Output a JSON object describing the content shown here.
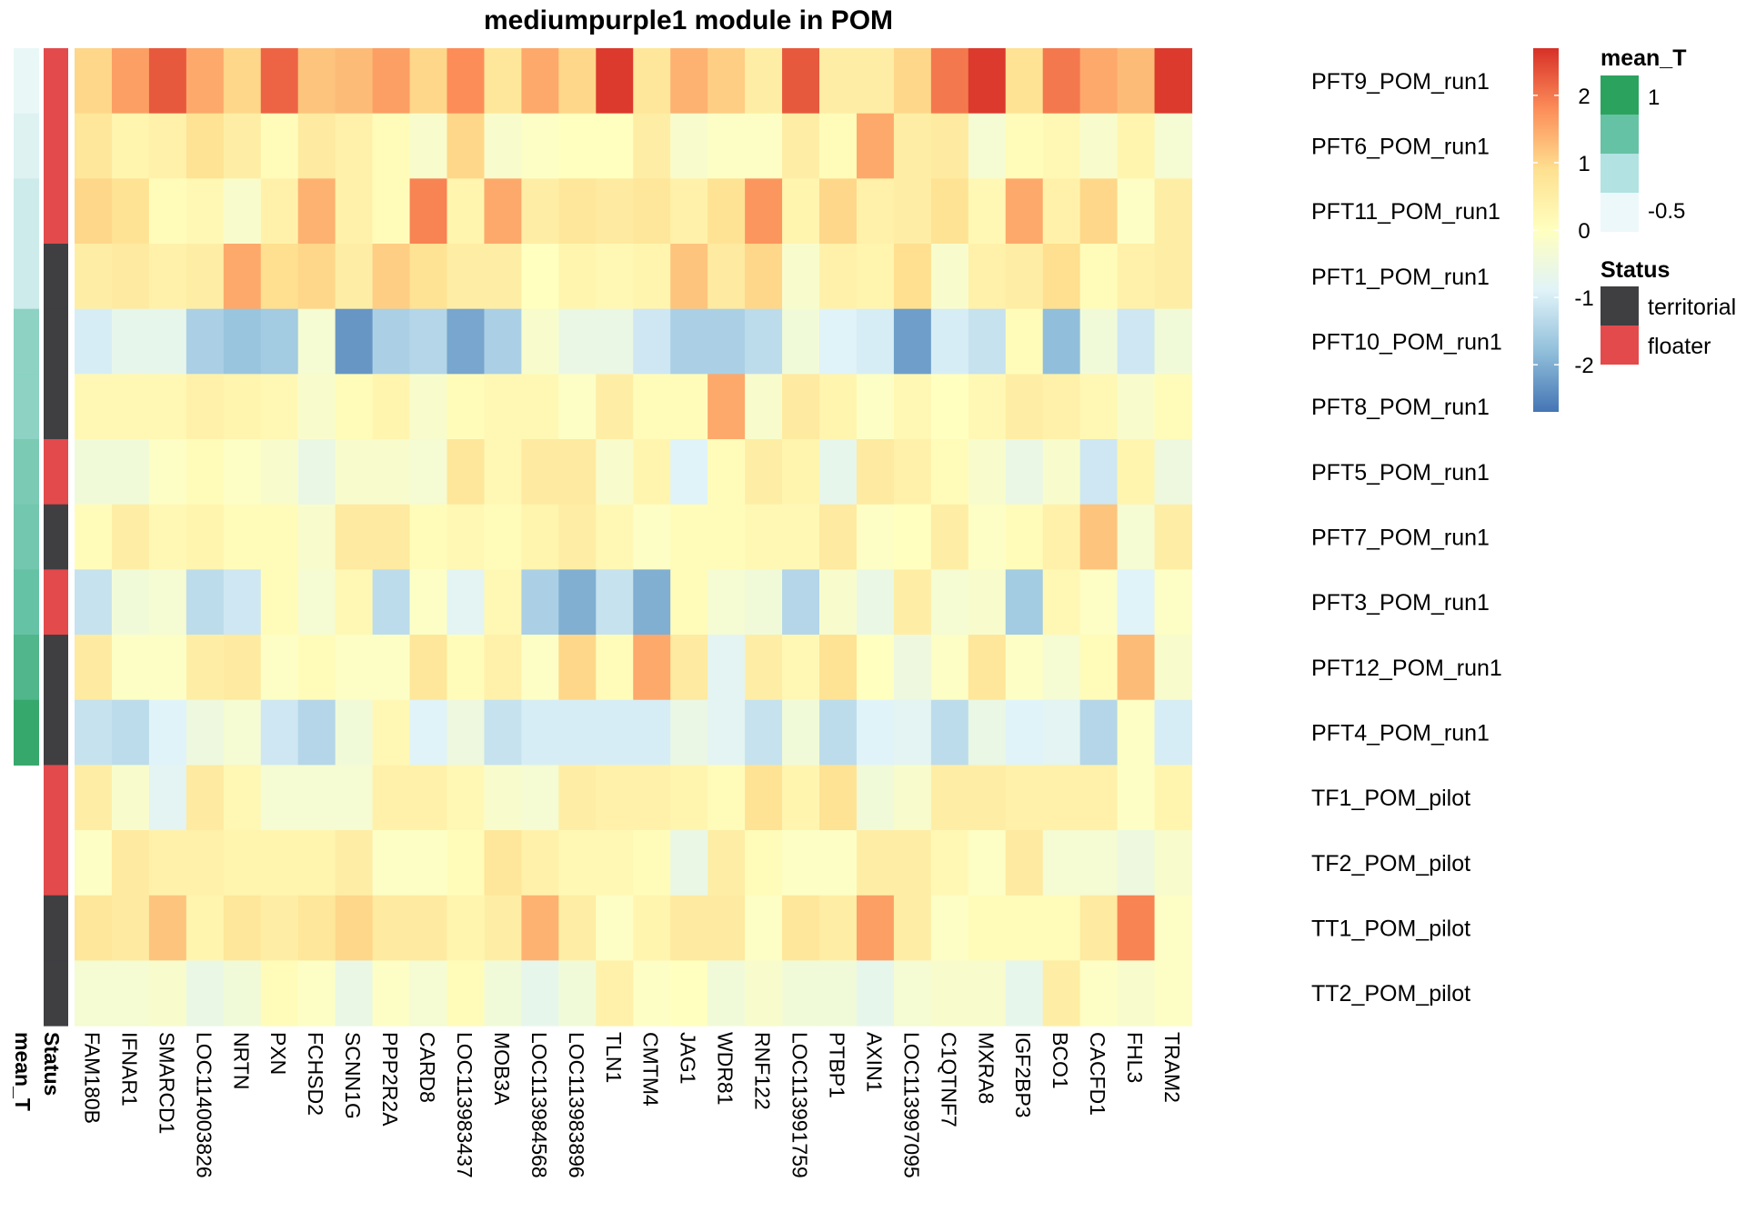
{
  "chart_data": {
    "type": "heatmap",
    "title": "mediumpurple1 module in POM",
    "rows": [
      "PFT9_POM_run1",
      "PFT6_POM_run1",
      "PFT11_POM_run1",
      "PFT1_POM_run1",
      "PFT10_POM_run1",
      "PFT8_POM_run1",
      "PFT5_POM_run1",
      "PFT7_POM_run1",
      "PFT3_POM_run1",
      "PFT12_POM_run1",
      "PFT4_POM_run1",
      "TF1_POM_pilot",
      "TF2_POM_pilot",
      "TT1_POM_pilot",
      "TT2_POM_pilot"
    ],
    "columns": [
      "FAM180B",
      "IFNAR1",
      "SMARCD1",
      "LOC114003826",
      "NRTN",
      "PXN",
      "FCHSD2",
      "SCNN1G",
      "PPP2R2A",
      "CARD8",
      "LOC113983437",
      "MOB3A",
      "LOC113984568",
      "LOC113983896",
      "TLN1",
      "CMTM4",
      "JAG1",
      "WDR81",
      "RNF122",
      "LOC113991759",
      "PTBP1",
      "AXIN1",
      "LOC113997095",
      "C1QTNF7",
      "MXRA8",
      "IGF2BP3",
      "BCO1",
      "CACFD1",
      "FHL3",
      "TRAM2"
    ],
    "values": [
      [
        1.0,
        1.6,
        2.3,
        1.5,
        1.0,
        2.2,
        1.2,
        1.3,
        1.6,
        1.0,
        1.8,
        0.7,
        1.5,
        1.0,
        2.6,
        0.7,
        1.4,
        1.1,
        0.5,
        2.3,
        0.5,
        0.5,
        1.0,
        2.0,
        2.6,
        0.8,
        2.0,
        1.5,
        1.3,
        2.6
      ],
      [
        0.7,
        0.3,
        0.4,
        0.8,
        0.5,
        0.1,
        0.6,
        0.4,
        0.1,
        -0.2,
        1.0,
        -0.2,
        -0.1,
        0.0,
        0.0,
        0.5,
        -0.2,
        -0.1,
        -0.1,
        0.5,
        0.1,
        1.5,
        0.5,
        0.6,
        -0.3,
        0.1,
        0.2,
        -0.2,
        0.3,
        -0.3
      ],
      [
        1.0,
        0.8,
        0.1,
        0.2,
        -0.2,
        0.4,
        1.4,
        0.4,
        0.1,
        1.9,
        0.3,
        1.5,
        0.5,
        0.7,
        0.6,
        0.7,
        0.4,
        0.8,
        1.7,
        0.3,
        1.0,
        0.4,
        0.5,
        0.8,
        0.2,
        1.5,
        0.4,
        1.0,
        -0.1,
        0.5
      ],
      [
        0.5,
        0.6,
        0.4,
        0.5,
        1.5,
        0.9,
        1.0,
        0.5,
        1.1,
        0.8,
        0.5,
        0.5,
        0.0,
        0.3,
        0.2,
        0.3,
        1.2,
        0.6,
        1.0,
        -0.2,
        0.4,
        0.3,
        0.9,
        -0.2,
        0.4,
        0.5,
        0.9,
        0.1,
        0.4,
        0.5
      ],
      [
        -1.0,
        -0.7,
        -0.7,
        -1.5,
        -1.7,
        -1.6,
        -0.3,
        -2.3,
        -1.5,
        -1.4,
        -2.1,
        -1.5,
        -0.2,
        -0.6,
        -0.6,
        -1.1,
        -1.5,
        -1.5,
        -1.3,
        -0.4,
        -0.9,
        -1.0,
        -2.2,
        -1.0,
        -1.2,
        0.1,
        -1.8,
        -0.4,
        -1.1,
        -0.4
      ],
      [
        0.2,
        0.2,
        0.2,
        0.4,
        0.3,
        0.2,
        -0.2,
        0.1,
        0.3,
        -0.2,
        0.1,
        0.2,
        0.2,
        -0.1,
        0.5,
        0.1,
        0.1,
        1.5,
        -0.2,
        0.6,
        0.3,
        -0.1,
        0.2,
        0.0,
        0.2,
        0.5,
        0.4,
        0.2,
        -0.2,
        0.1
      ],
      [
        -0.4,
        -0.4,
        -0.1,
        0.1,
        -0.1,
        -0.2,
        -0.6,
        -0.2,
        -0.2,
        -0.3,
        0.7,
        0.2,
        0.6,
        0.6,
        -0.2,
        0.3,
        -0.9,
        0.1,
        0.5,
        0.3,
        -0.7,
        0.6,
        0.4,
        0.1,
        -0.2,
        -0.6,
        -0.2,
        -1.1,
        0.3,
        -0.5
      ],
      [
        0.1,
        0.5,
        0.2,
        0.3,
        0.1,
        0.1,
        -0.2,
        0.6,
        0.6,
        0.1,
        0.2,
        0.1,
        0.3,
        0.5,
        0.2,
        -0.1,
        0.1,
        0.1,
        0.2,
        0.2,
        0.6,
        -0.1,
        0.0,
        0.5,
        -0.1,
        0.1,
        0.4,
        1.2,
        -0.3,
        0.5
      ],
      [
        -1.2,
        -0.4,
        -0.3,
        -1.3,
        -1.1,
        0.1,
        -0.3,
        0.2,
        -1.3,
        -0.1,
        -0.8,
        0.2,
        -1.5,
        -2.0,
        -1.2,
        -2.0,
        0.1,
        -0.3,
        -0.4,
        -1.4,
        -0.2,
        -0.6,
        0.5,
        -0.3,
        -0.2,
        -1.6,
        0.2,
        -0.1,
        -0.9,
        -0.1
      ],
      [
        0.6,
        -0.1,
        -0.1,
        0.5,
        0.6,
        -0.1,
        0.1,
        -0.1,
        -0.1,
        0.7,
        0.1,
        0.4,
        -0.1,
        1.0,
        0.1,
        1.5,
        0.6,
        -0.8,
        0.5,
        0.2,
        0.8,
        0.0,
        -0.5,
        -0.1,
        0.7,
        -0.1,
        -0.3,
        0.1,
        1.3,
        -0.2
      ],
      [
        -1.2,
        -1.3,
        -0.9,
        -0.5,
        -0.3,
        -1.1,
        -1.4,
        -0.4,
        0.2,
        -0.9,
        -0.5,
        -1.2,
        -1.0,
        -1.0,
        -1.0,
        -1.0,
        -0.6,
        -0.8,
        -1.2,
        -0.4,
        -1.3,
        -0.9,
        -0.8,
        -1.3,
        -0.6,
        -0.9,
        -0.8,
        -1.4,
        -0.1,
        -1.0
      ],
      [
        0.5,
        -0.2,
        -0.8,
        0.6,
        0.2,
        -0.3,
        -0.3,
        -0.3,
        0.4,
        0.4,
        0.2,
        -0.2,
        -0.3,
        0.5,
        0.4,
        0.4,
        0.3,
        0.1,
        0.8,
        0.3,
        0.8,
        -0.4,
        -0.2,
        0.5,
        0.5,
        0.4,
        0.4,
        0.4,
        -0.1,
        0.3
      ],
      [
        -0.1,
        0.6,
        0.4,
        0.4,
        0.3,
        0.3,
        0.3,
        0.5,
        -0.1,
        -0.1,
        0.1,
        0.7,
        0.4,
        0.2,
        0.2,
        0.1,
        -0.6,
        0.5,
        0.1,
        -0.1,
        -0.1,
        0.5,
        0.5,
        0.2,
        -0.1,
        0.6,
        -0.3,
        -0.3,
        -0.5,
        -0.2
      ],
      [
        0.7,
        0.6,
        1.2,
        0.3,
        0.7,
        0.5,
        0.7,
        1.0,
        0.6,
        0.6,
        0.3,
        0.5,
        1.4,
        0.5,
        -0.1,
        0.3,
        0.6,
        0.6,
        -0.1,
        0.7,
        0.5,
        1.6,
        0.5,
        -0.1,
        0.1,
        0.1,
        0.1,
        0.6,
        1.9,
        -0.1
      ],
      [
        -0.3,
        -0.3,
        -0.2,
        -0.6,
        -0.4,
        0.1,
        -0.1,
        -0.6,
        -0.1,
        -0.3,
        0.1,
        -0.4,
        -0.7,
        -0.4,
        0.4,
        -0.1,
        0.0,
        -0.4,
        -0.2,
        -0.4,
        -0.4,
        -0.7,
        -0.3,
        -0.2,
        -0.2,
        -0.7,
        0.5,
        -0.1,
        -0.2,
        -0.1
      ]
    ],
    "color_scale": {
      "range": [
        -2.7,
        2.7
      ],
      "ticks": [
        -2,
        -1,
        0,
        1,
        2
      ],
      "colors": [
        "#4575b4",
        "#91bfdb",
        "#e0f3f8",
        "#ffffbf",
        "#fee090",
        "#fc8d59",
        "#d73027"
      ]
    },
    "annotation_rows": {
      "mean_T": {
        "label": "mean_T",
        "values": [
          -0.55,
          -0.45,
          -0.3,
          -0.3,
          0.2,
          0.2,
          0.35,
          0.4,
          0.5,
          0.7,
          0.95,
          null,
          null,
          null,
          null
        ],
        "range": [
          -0.6,
          1.05
        ],
        "colors": [
          "#f0f9fa",
          "#aee0dd",
          "#66c2a4",
          "#2ca25f"
        ],
        "legend_ticks": [
          "1",
          "-0.5"
        ],
        "legend_colors": [
          "#2ca25f",
          "#66c2a4",
          "#b2e2e2",
          "#edf8fb"
        ]
      },
      "Status": {
        "label": "Status",
        "values": [
          "floater",
          "floater",
          "floater",
          "territorial",
          "territorial",
          "territorial",
          "floater",
          "territorial",
          "floater",
          "territorial",
          "territorial",
          "floater",
          "floater",
          "territorial",
          "territorial"
        ],
        "legend": [
          {
            "name": "territorial",
            "color": "#3f3f42"
          },
          {
            "name": "floater",
            "color": "#e34a4c"
          }
        ]
      }
    },
    "legend_position": "right"
  }
}
